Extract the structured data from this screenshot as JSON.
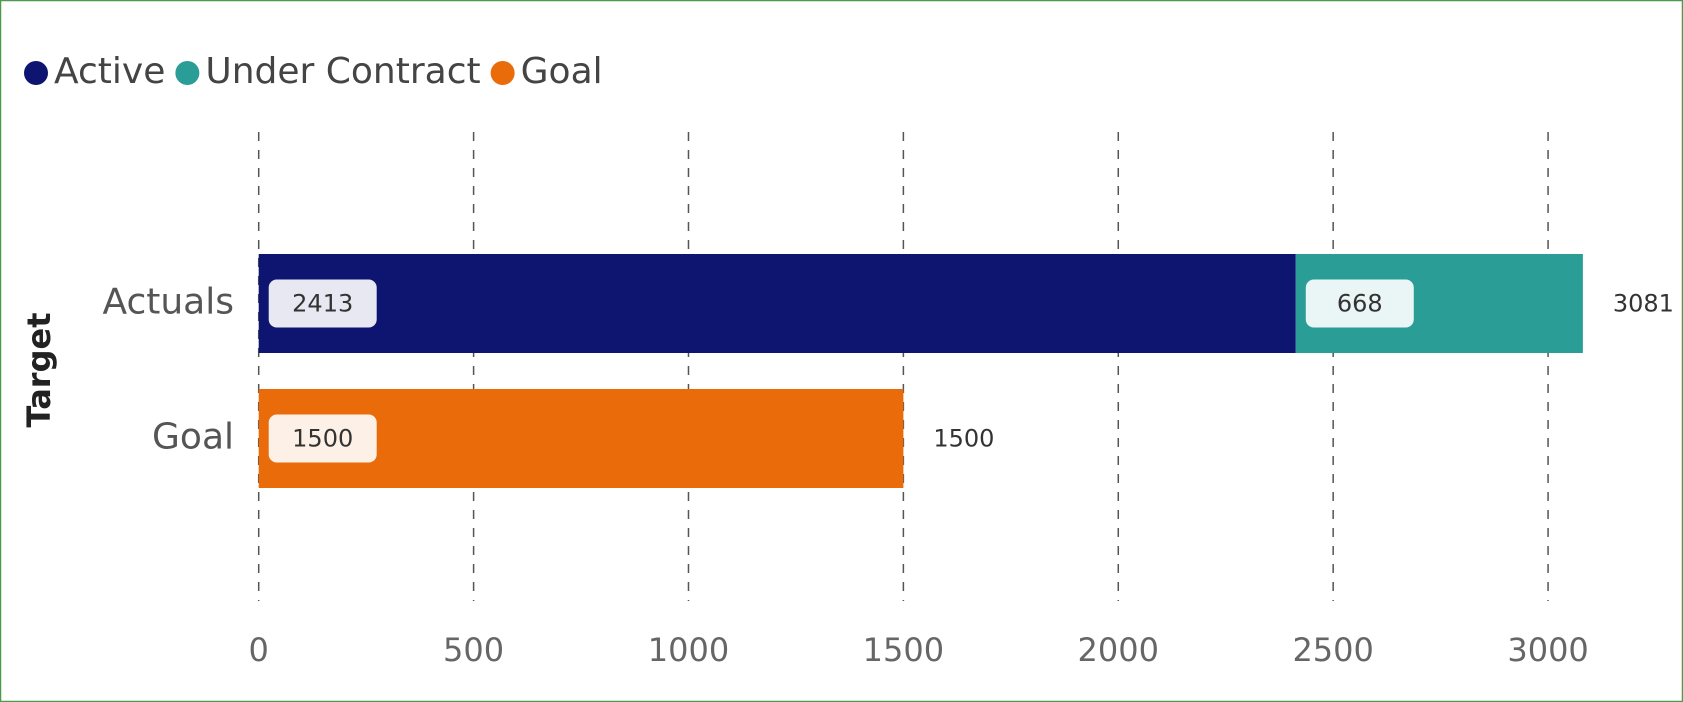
{
  "chart_data": {
    "type": "stacked-bar-horizontal",
    "y_label": "Target",
    "categories": [
      "Actuals",
      "Goal"
    ],
    "series": [
      {
        "name": "Active",
        "color": "#0d1570",
        "values": [
          2413,
          null
        ]
      },
      {
        "name": "Under Contract",
        "color": "#2a9d96",
        "values": [
          668,
          null
        ]
      },
      {
        "name": "Goal",
        "color": "#e96b0a",
        "values": [
          null,
          1500
        ]
      }
    ],
    "totals": [
      3081,
      1500
    ],
    "xlim": [
      0,
      3300
    ],
    "xticks": [
      0,
      500,
      1000,
      1500,
      2000,
      2500,
      3000
    ],
    "grid": true,
    "legend": "top-left"
  }
}
